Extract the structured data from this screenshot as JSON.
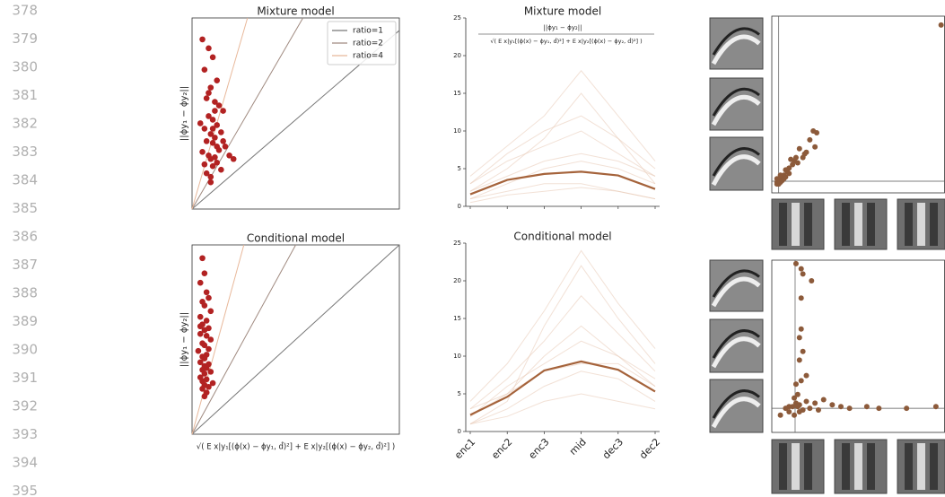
{
  "line_numbers": [
    378,
    379,
    380,
    381,
    382,
    383,
    384,
    385,
    386,
    387,
    388,
    389,
    390,
    391,
    392,
    393,
    394,
    395
  ],
  "chart_data": [
    {
      "type": "scatter",
      "title": "Mixture model",
      "ylabel": "||ϕy₁ − ϕy₂||",
      "color": "#b22222",
      "xlim": [
        0,
        1
      ],
      "ylim": [
        0,
        1.07
      ],
      "legend": "upper right",
      "reference_lines": [
        {
          "name": "ratio=1",
          "slope": 1,
          "color": "#777777"
        },
        {
          "name": "ratio=2",
          "slope": 2,
          "color": "#a08a80"
        },
        {
          "name": "ratio=4",
          "slope": 4,
          "color": "#e8b89a"
        }
      ],
      "x": [
        0.05,
        0.08,
        0.1,
        0.06,
        0.12,
        0.09,
        0.07,
        0.11,
        0.13,
        0.15,
        0.08,
        0.1,
        0.04,
        0.06,
        0.12,
        0.14,
        0.09,
        0.11,
        0.07,
        0.1,
        0.16,
        0.13,
        0.05,
        0.08,
        0.11,
        0.09,
        0.12,
        0.06,
        0.1,
        0.14,
        0.07,
        0.09,
        0.18,
        0.2,
        0.15,
        0.11,
        0.08,
        0.1,
        0.12,
        0.09
      ],
      "values": [
        0.95,
        0.9,
        0.85,
        0.78,
        0.72,
        0.68,
        0.62,
        0.6,
        0.58,
        0.55,
        0.52,
        0.5,
        0.48,
        0.45,
        0.47,
        0.43,
        0.42,
        0.4,
        0.38,
        0.37,
        0.35,
        0.33,
        0.32,
        0.3,
        0.29,
        0.28,
        0.26,
        0.25,
        0.24,
        0.22,
        0.2,
        0.18,
        0.3,
        0.28,
        0.38,
        0.55,
        0.65,
        0.45,
        0.35,
        0.15
      ]
    },
    {
      "type": "line",
      "title": "Mixture model",
      "formula_numerator": "||ϕy₁ − ϕy₂||",
      "formula_denominator": "√( E x|y₁[(ϕ(x) − ϕy₁, d̂)²] + E x|y₂[(ϕ(x) − ϕy₂, d̂)²] )",
      "categories": [
        null,
        null,
        null,
        null,
        null,
        null
      ],
      "ylim": [
        0,
        25
      ],
      "yticks": [
        0,
        5,
        10,
        15,
        20,
        25
      ],
      "series": [
        {
          "color": "#e8c9b4",
          "values": [
            3,
            6,
            8,
            10,
            7,
            4
          ]
        },
        {
          "color": "#e8c9b4",
          "values": [
            1,
            2,
            3,
            3,
            2,
            1
          ]
        },
        {
          "color": "#e8c9b4",
          "values": [
            2,
            5,
            9,
            15,
            9,
            3
          ]
        },
        {
          "color": "#e8c9b4",
          "values": [
            4,
            8,
            12,
            18,
            12,
            6
          ]
        },
        {
          "color": "#e8c9b4",
          "values": [
            1,
            3,
            5,
            6,
            5,
            3
          ]
        },
        {
          "color": "#e8c9b4",
          "values": [
            2,
            4,
            6,
            7,
            6,
            4
          ]
        },
        {
          "color": "#e8c9b4",
          "values": [
            0.5,
            1.5,
            2,
            2.5,
            2,
            1
          ]
        },
        {
          "color": "#e8c9b4",
          "values": [
            3,
            7,
            10,
            12,
            9,
            5
          ]
        },
        {
          "color": "#a5633b",
          "values": [
            1.6,
            3.5,
            4.3,
            4.6,
            4.1,
            2.3
          ]
        }
      ]
    },
    {
      "type": "scatter",
      "color": "#8c5a3a",
      "xlim": [
        0,
        1
      ],
      "ylim": [
        0,
        1
      ],
      "vline": 0.04,
      "hline": 0.066,
      "x": [
        0.98,
        0.24,
        0.26,
        0.22,
        0.25,
        0.2,
        0.18,
        0.16,
        0.14,
        0.13,
        0.12,
        0.1,
        0.09,
        0.08,
        0.07,
        0.06,
        0.05,
        0.04,
        0.05,
        0.03,
        0.06,
        0.07,
        0.04,
        0.08,
        0.1,
        0.05,
        0.03,
        0.11,
        0.15,
        0.19,
        0.03
      ],
      "values": [
        0.95,
        0.35,
        0.34,
        0.3,
        0.26,
        0.23,
        0.2,
        0.25,
        0.2,
        0.18,
        0.16,
        0.14,
        0.12,
        0.13,
        0.1,
        0.09,
        0.08,
        0.07,
        0.06,
        0.06,
        0.07,
        0.08,
        0.05,
        0.09,
        0.11,
        0.1,
        0.08,
        0.19,
        0.17,
        0.22,
        0.05
      ]
    },
    {
      "type": "scatter",
      "title": "Conditional model",
      "ylabel": "||ϕy₁ − ϕy₂||",
      "xlabel": "√( E x|y₁[(ϕ(x) − ϕy₁, d̂)²] + E x|y₂[(ϕ(x) − ϕy₂, d̂)²] )",
      "color": "#b22222",
      "xlim": [
        0,
        1
      ],
      "ylim": [
        0,
        1
      ],
      "reference_lines": [
        {
          "slope": 1,
          "color": "#777777"
        },
        {
          "slope": 2,
          "color": "#a08a80"
        },
        {
          "slope": 4,
          "color": "#e8b89a"
        }
      ],
      "x": [
        0.05,
        0.06,
        0.04,
        0.07,
        0.08,
        0.05,
        0.06,
        0.09,
        0.04,
        0.07,
        0.05,
        0.08,
        0.06,
        0.04,
        0.07,
        0.09,
        0.05,
        0.06,
        0.08,
        0.03,
        0.07,
        0.05,
        0.06,
        0.04,
        0.08,
        0.06,
        0.07,
        0.05,
        0.09,
        0.06,
        0.04,
        0.07,
        0.05,
        0.1,
        0.06,
        0.08,
        0.05,
        0.07,
        0.06,
        0.04
      ],
      "values": [
        0.93,
        0.85,
        0.8,
        0.75,
        0.72,
        0.7,
        0.68,
        0.65,
        0.62,
        0.6,
        0.58,
        0.56,
        0.55,
        0.53,
        0.52,
        0.5,
        0.48,
        0.47,
        0.45,
        0.44,
        0.42,
        0.41,
        0.4,
        0.38,
        0.37,
        0.36,
        0.35,
        0.34,
        0.33,
        0.32,
        0.3,
        0.29,
        0.28,
        0.27,
        0.26,
        0.25,
        0.24,
        0.22,
        0.2,
        0.57
      ]
    },
    {
      "type": "line",
      "title": "Conditional model",
      "categories": [
        "enc1",
        "enc2",
        "enc3",
        "mid",
        "dec3",
        "dec2"
      ],
      "ylim": [
        0,
        25
      ],
      "yticks": [
        0,
        5,
        10,
        15,
        20,
        25
      ],
      "series": [
        {
          "color": "#e8c9b4",
          "values": [
            2,
            5,
            10,
            14,
            10,
            6
          ]
        },
        {
          "color": "#e8c9b4",
          "values": [
            1,
            3,
            6,
            8,
            7,
            4
          ]
        },
        {
          "color": "#e8c9b4",
          "values": [
            3,
            7,
            12,
            18,
            13,
            8
          ]
        },
        {
          "color": "#e8c9b4",
          "values": [
            4,
            9,
            16,
            24,
            17,
            11
          ]
        },
        {
          "color": "#e8c9b4",
          "values": [
            1,
            2,
            4,
            5,
            4,
            3
          ]
        },
        {
          "color": "#e8c9b4",
          "values": [
            2,
            6,
            9,
            12,
            10,
            7
          ]
        },
        {
          "color": "#e8c9b4",
          "values": [
            3,
            5,
            8,
            9,
            9,
            6
          ]
        },
        {
          "color": "#e8c9b4",
          "values": [
            1,
            4,
            14,
            22,
            15,
            9
          ]
        },
        {
          "color": "#a5633b",
          "values": [
            2.2,
            4.6,
            8.1,
            9.3,
            8.2,
            5.3
          ]
        }
      ]
    },
    {
      "type": "scatter",
      "color": "#8c5a3a",
      "xlim": [
        0,
        1
      ],
      "ylim": [
        0,
        1
      ],
      "vline": 0.135,
      "hline": 0.14,
      "x": [
        0.14,
        0.17,
        0.18,
        0.23,
        0.17,
        0.17,
        0.16,
        0.18,
        0.16,
        0.2,
        0.17,
        0.14,
        0.15,
        0.13,
        0.14,
        0.16,
        0.2,
        0.25,
        0.3,
        0.35,
        0.4,
        0.45,
        0.55,
        0.62,
        0.78,
        0.95,
        0.1,
        0.08,
        0.05,
        0.12,
        0.15,
        0.18,
        0.22,
        0.13,
        0.16,
        0.27,
        0.1
      ],
      "values": [
        0.98,
        0.95,
        0.92,
        0.88,
        0.78,
        0.6,
        0.55,
        0.47,
        0.42,
        0.33,
        0.3,
        0.28,
        0.22,
        0.2,
        0.17,
        0.16,
        0.18,
        0.17,
        0.19,
        0.16,
        0.15,
        0.14,
        0.15,
        0.14,
        0.14,
        0.15,
        0.12,
        0.14,
        0.1,
        0.15,
        0.15,
        0.13,
        0.14,
        0.1,
        0.12,
        0.13,
        0.15
      ]
    }
  ]
}
